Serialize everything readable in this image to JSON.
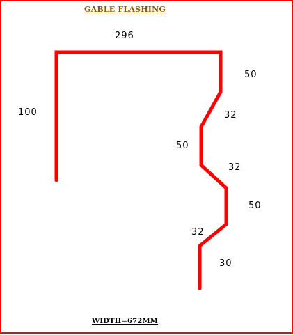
{
  "title": "GABLE  FLASHING",
  "width_label": "WIDTH=672MM",
  "colors": {
    "border": "#ff0000",
    "profile_line": "#ff0000",
    "title_text": "#8b5a00",
    "dimension_text": "#000000"
  },
  "dimensions": {
    "top": "296",
    "left_leg": "100",
    "seg_1": "50",
    "seg_2": "32",
    "seg_3": "50",
    "seg_4": "32",
    "seg_5": "50",
    "seg_6": "32",
    "seg_7": "30"
  }
}
